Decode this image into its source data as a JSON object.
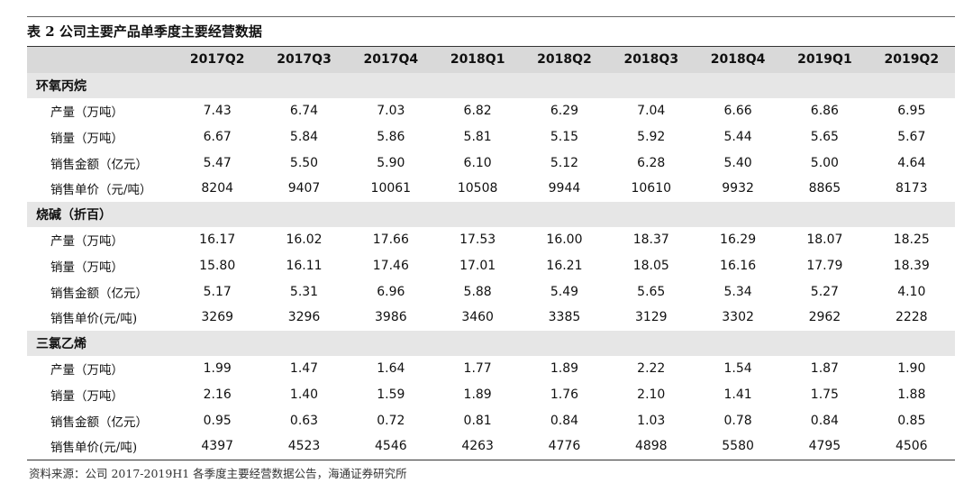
{
  "title": "表 2 公司主要产品单季度主要经营数据",
  "columns": [
    "2017Q2",
    "2017Q3",
    "2017Q4",
    "2018Q1",
    "2018Q2",
    "2018Q3",
    "2018Q4",
    "2019Q1",
    "2019Q2"
  ],
  "groups": [
    {
      "name": "环氧丙烷",
      "rows": [
        {
          "label": "产量（万吨）",
          "values": [
            "7.43",
            "6.74",
            "7.03",
            "6.82",
            "6.29",
            "7.04",
            "6.66",
            "6.86",
            "6.95"
          ]
        },
        {
          "label": "销量（万吨）",
          "values": [
            "6.67",
            "5.84",
            "5.86",
            "5.81",
            "5.15",
            "5.92",
            "5.44",
            "5.65",
            "5.67"
          ]
        },
        {
          "label": "销售金额（亿元）",
          "values": [
            "5.47",
            "5.50",
            "5.90",
            "6.10",
            "5.12",
            "6.28",
            "5.40",
            "5.00",
            "4.64"
          ]
        },
        {
          "label": "销售单价（元/吨）",
          "values": [
            "8204",
            "9407",
            "10061",
            "10508",
            "9944",
            "10610",
            "9932",
            "8865",
            "8173"
          ]
        }
      ]
    },
    {
      "name": "烧碱（折百）",
      "rows": [
        {
          "label": "产量（万吨）",
          "values": [
            "16.17",
            "16.02",
            "17.66",
            "17.53",
            "16.00",
            "18.37",
            "16.29",
            "18.07",
            "18.25"
          ]
        },
        {
          "label": "销量（万吨）",
          "values": [
            "15.80",
            "16.11",
            "17.46",
            "17.01",
            "16.21",
            "18.05",
            "16.16",
            "17.79",
            "18.39"
          ]
        },
        {
          "label": "销售金额（亿元）",
          "values": [
            "5.17",
            "5.31",
            "6.96",
            "5.88",
            "5.49",
            "5.65",
            "5.34",
            "5.27",
            "4.10"
          ]
        },
        {
          "label": "销售单价(元/吨)",
          "values": [
            "3269",
            "3296",
            "3986",
            "3460",
            "3385",
            "3129",
            "3302",
            "2962",
            "2228"
          ]
        }
      ]
    },
    {
      "name": "三氯乙烯",
      "rows": [
        {
          "label": "产量（万吨）",
          "values": [
            "1.99",
            "1.47",
            "1.64",
            "1.77",
            "1.89",
            "2.22",
            "1.54",
            "1.87",
            "1.90"
          ]
        },
        {
          "label": "销量（万吨）",
          "values": [
            "2.16",
            "1.40",
            "1.59",
            "1.89",
            "1.76",
            "2.10",
            "1.41",
            "1.75",
            "1.88"
          ]
        },
        {
          "label": "销售金额（亿元）",
          "values": [
            "0.95",
            "0.63",
            "0.72",
            "0.81",
            "0.84",
            "1.03",
            "0.78",
            "0.84",
            "0.85"
          ]
        },
        {
          "label": "销售单价(元/吨)",
          "values": [
            "4397",
            "4523",
            "4546",
            "4263",
            "4776",
            "4898",
            "5580",
            "4795",
            "4506"
          ]
        }
      ]
    }
  ],
  "source": "资料来源：公司 2017-2019H1 各季度主要经营数据公告，海通证券研究所"
}
